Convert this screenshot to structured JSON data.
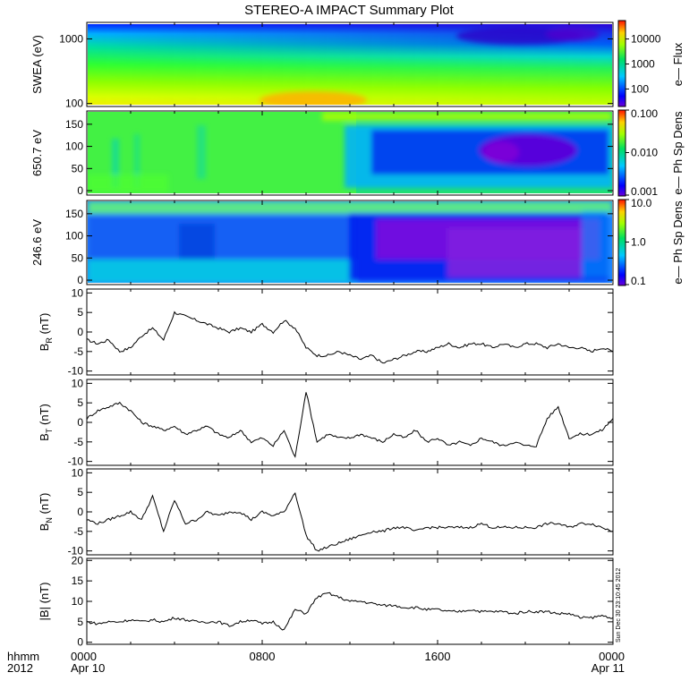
{
  "chart_data": {
    "type": "line",
    "title": "STEREO-A IMPACT Summary Plot",
    "x_axis": {
      "tick_labels": [
        "0000",
        "0800",
        "1600",
        "0000"
      ],
      "tick_hours": [
        0,
        8,
        16,
        24
      ],
      "date_labels": [
        "Apr 10",
        "Apr 11"
      ],
      "corner_labels": [
        "hhmm",
        "2012"
      ]
    },
    "spectrograms": [
      {
        "ylabel": "SWEA (eV)",
        "ylim": [
          90,
          1800
        ],
        "log": true,
        "yticks": [
          100,
          1000
        ],
        "ytick_labels": [
          "100",
          "1000"
        ],
        "colorbar_label": "e— Flux",
        "colorbar_ticks": [
          "100",
          "1000",
          "10000"
        ],
        "colorbar_values": [
          100,
          1000,
          10000
        ],
        "colorbar_range": [
          20,
          50000
        ]
      },
      {
        "ylabel": "650.7 eV",
        "ylim": [
          -10,
          180
        ],
        "log": false,
        "yticks": [
          0,
          50,
          100,
          150
        ],
        "ytick_labels": [
          "0",
          "50",
          "100",
          "150"
        ],
        "colorbar_label": "e— Ph Sp Dens",
        "colorbar_ticks": [
          "0.001",
          "0.010",
          "0.100"
        ],
        "colorbar_values": [
          0.001,
          0.01,
          0.1
        ],
        "colorbar_range": [
          0.001,
          0.1
        ]
      },
      {
        "ylabel": "246.6 eV",
        "ylim": [
          -10,
          180
        ],
        "log": false,
        "yticks": [
          0,
          50,
          100,
          150
        ],
        "ytick_labels": [
          "0",
          "50",
          "100",
          "150"
        ],
        "colorbar_label": "e— Ph Sp Dens",
        "colorbar_ticks": [
          "0.1",
          "1.0",
          "10.0"
        ],
        "colorbar_values": [
          0.1,
          1,
          10
        ],
        "colorbar_range": [
          0.1,
          10
        ]
      }
    ],
    "series": [
      {
        "name": "BR",
        "ylabel_main": "B",
        "ylabel_sub": "R",
        "ylabel_unit": "(nT)",
        "ylim": [
          -11,
          11
        ],
        "yticks": [
          -10,
          -5,
          0,
          5,
          10
        ],
        "ytick_labels": [
          "-10",
          "-5",
          "0",
          "5",
          "10"
        ],
        "x": [
          0,
          0.5,
          1,
          1.5,
          2,
          2.5,
          3,
          3.5,
          4,
          4.5,
          5,
          5.5,
          6,
          6.5,
          7,
          7.5,
          8,
          8.5,
          9,
          9.5,
          10,
          10.5,
          11,
          11.5,
          12,
          12.5,
          13,
          13.5,
          14,
          14.5,
          15,
          15.5,
          16,
          16.5,
          17,
          17.5,
          18,
          18.5,
          19,
          19.5,
          20,
          20.5,
          21,
          21.5,
          22,
          22.5,
          23,
          23.5,
          24
        ],
        "values": [
          -2,
          -3,
          -2,
          -5,
          -4,
          -1,
          1,
          -2,
          5,
          4,
          3,
          2,
          1,
          0,
          1,
          0,
          2,
          0,
          3,
          1,
          -4,
          -6,
          -6,
          -5,
          -6,
          -7,
          -6,
          -8,
          -7,
          -6,
          -5,
          -5,
          -4,
          -3,
          -4,
          -3,
          -3,
          -4,
          -3,
          -4,
          -3,
          -3,
          -4,
          -3,
          -4,
          -4,
          -5,
          -4,
          -5
        ]
      },
      {
        "name": "BT",
        "ylabel_main": "B",
        "ylabel_sub": "T",
        "ylabel_unit": "(nT)",
        "ylim": [
          -11,
          11
        ],
        "yticks": [
          -10,
          -5,
          0,
          5,
          10
        ],
        "ytick_labels": [
          "-10",
          "-5",
          "0",
          "5",
          "10"
        ],
        "x": [
          0,
          0.5,
          1,
          1.5,
          2,
          2.5,
          3,
          3.5,
          4,
          4.5,
          5,
          5.5,
          6,
          6.5,
          7,
          7.5,
          8,
          8.5,
          9,
          9.5,
          10,
          10.5,
          11,
          11.5,
          12,
          12.5,
          13,
          13.5,
          14,
          14.5,
          15,
          15.5,
          16,
          16.5,
          17,
          17.5,
          18,
          18.5,
          19,
          19.5,
          20,
          20.5,
          21,
          21.5,
          22,
          22.5,
          23,
          23.5,
          24
        ],
        "values": [
          1,
          3,
          4,
          5,
          3,
          0,
          -1,
          -2,
          -1,
          -3,
          -2,
          -1,
          -3,
          -4,
          -2,
          -5,
          -4,
          -6,
          -2,
          -9,
          8,
          -5,
          -3,
          -4,
          -4,
          -3,
          -4,
          -5,
          -3,
          -4,
          -2,
          -5,
          -4,
          -6,
          -5,
          -6,
          -4,
          -5,
          -6,
          -5,
          -6,
          -6,
          1,
          4,
          -4,
          -3,
          -3,
          -2,
          1
        ]
      },
      {
        "name": "BN",
        "ylabel_main": "B",
        "ylabel_sub": "N",
        "ylabel_unit": "(nT)",
        "ylim": [
          -11,
          11
        ],
        "yticks": [
          -10,
          -5,
          0,
          5,
          10
        ],
        "ytick_labels": [
          "-10",
          "-5",
          "0",
          "5",
          "10"
        ],
        "x": [
          0,
          0.5,
          1,
          1.5,
          2,
          2.5,
          3,
          3.5,
          4,
          4.5,
          5,
          5.5,
          6,
          6.5,
          7,
          7.5,
          8,
          8.5,
          9,
          9.5,
          10,
          10.5,
          11,
          11.5,
          12,
          12.5,
          13,
          13.5,
          14,
          14.5,
          15,
          15.5,
          16,
          16.5,
          17,
          17.5,
          18,
          18.5,
          19,
          19.5,
          20,
          20.5,
          21,
          21.5,
          22,
          22.5,
          23,
          23.5,
          24
        ],
        "values": [
          -2,
          -3,
          -2,
          -1,
          0,
          -2,
          4,
          -5,
          3,
          -3,
          -2,
          0,
          -1,
          0,
          0,
          -2,
          0,
          -1,
          0,
          5,
          -6,
          -10,
          -9,
          -8,
          -7,
          -6,
          -5,
          -5,
          -4,
          -4,
          -5,
          -4,
          -4,
          -4,
          -4,
          -4,
          -3,
          -4,
          -4,
          -4,
          -4,
          -4,
          -3,
          -3,
          -4,
          -3,
          -3,
          -4,
          -5
        ]
      },
      {
        "name": "|B|",
        "ylabel_main": "|B|",
        "ylabel_sub": "",
        "ylabel_unit": "(nT)",
        "ylim": [
          -0.5,
          20.5
        ],
        "yticks": [
          0,
          5,
          10,
          15,
          20
        ],
        "ytick_labels": [
          "0",
          "5",
          "10",
          "15",
          "20"
        ],
        "x": [
          0,
          0.5,
          1,
          1.5,
          2,
          2.5,
          3,
          3.5,
          4,
          4.5,
          5,
          5.5,
          6,
          6.5,
          7,
          7.5,
          8,
          8.5,
          9,
          9.5,
          10,
          10.5,
          11,
          11.5,
          12,
          12.5,
          13,
          13.5,
          14,
          14.5,
          15,
          15.5,
          16,
          16.5,
          17,
          17.5,
          18,
          18.5,
          19,
          19.5,
          20,
          20.5,
          21,
          21.5,
          22,
          22.5,
          23,
          23.5,
          24
        ],
        "values": [
          5,
          4.5,
          5,
          5,
          5.5,
          5,
          5.5,
          5,
          6,
          5.5,
          5,
          5,
          5,
          4,
          5,
          5.5,
          4.5,
          5,
          3,
          8,
          7,
          11,
          12,
          11,
          10,
          10,
          9.5,
          9,
          9,
          8.5,
          8.5,
          8,
          8,
          7.5,
          7.5,
          8,
          7.5,
          7.5,
          7.5,
          7,
          7.5,
          7.5,
          7.5,
          7,
          7,
          6,
          6,
          6.5,
          6
        ]
      }
    ],
    "side_text": "Sun Dec 30 23:10:45 2012"
  }
}
